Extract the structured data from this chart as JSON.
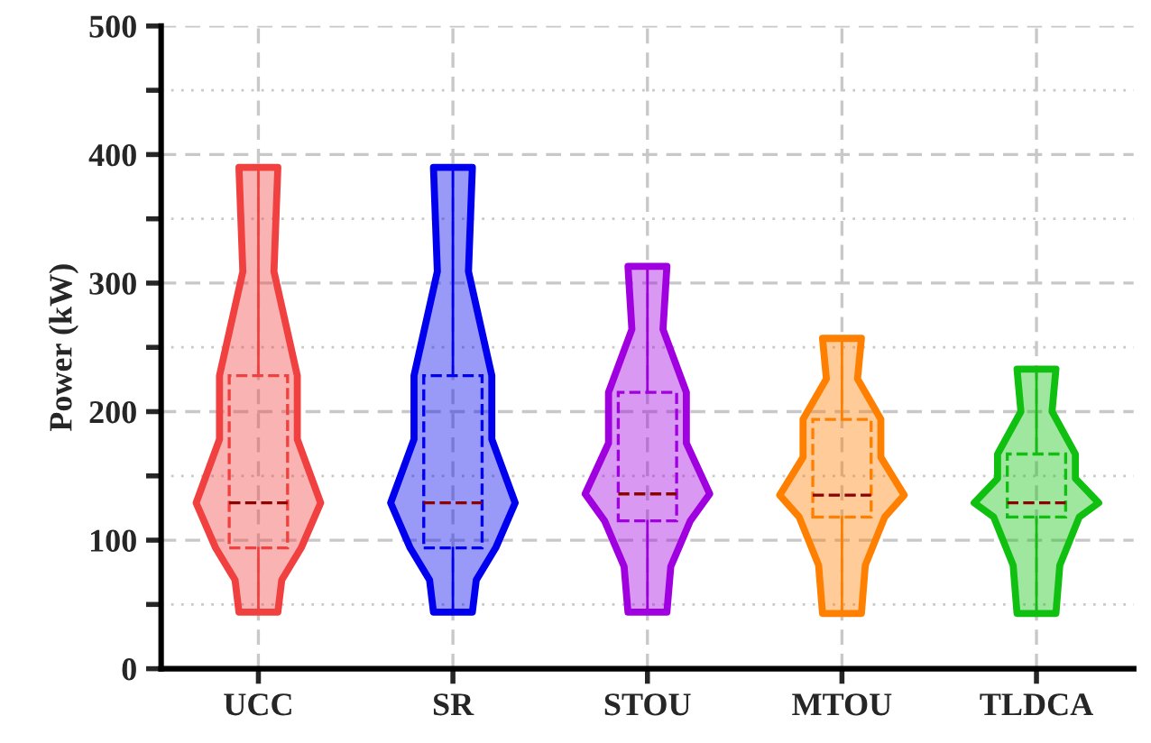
{
  "chart_data": {
    "type": "box",
    "ylabel": "Power (kW)",
    "categories": [
      "UCC",
      "SR",
      "STOU",
      "MTOU",
      "TLDCA"
    ],
    "boxes": [
      {
        "low": 44,
        "q1": 94,
        "median": 129,
        "q3": 228,
        "high": 390
      },
      {
        "low": 44,
        "q1": 94,
        "median": 129,
        "q3": 228,
        "high": 390
      },
      {
        "low": 44,
        "q1": 115,
        "median": 136,
        "q3": 215,
        "high": 313
      },
      {
        "low": 43,
        "q1": 118,
        "median": 135,
        "q3": 194,
        "high": 257
      },
      {
        "low": 43,
        "q1": 118,
        "median": 129,
        "q3": 167,
        "high": 233
      }
    ],
    "colors": [
      "#f04040",
      "#0000ee",
      "#a000e0",
      "#ff8000",
      "#10c010"
    ],
    "ylim": [
      0,
      500
    ],
    "yticks": [
      0,
      {
        "value": 50,
        "label": null
      },
      100,
      {
        "value": 150,
        "label": null
      },
      200,
      {
        "value": 250,
        "label": null
      },
      300,
      {
        "value": 350,
        "label": null
      },
      400,
      {
        "value": 450,
        "label": null
      },
      500
    ],
    "grid": true
  }
}
